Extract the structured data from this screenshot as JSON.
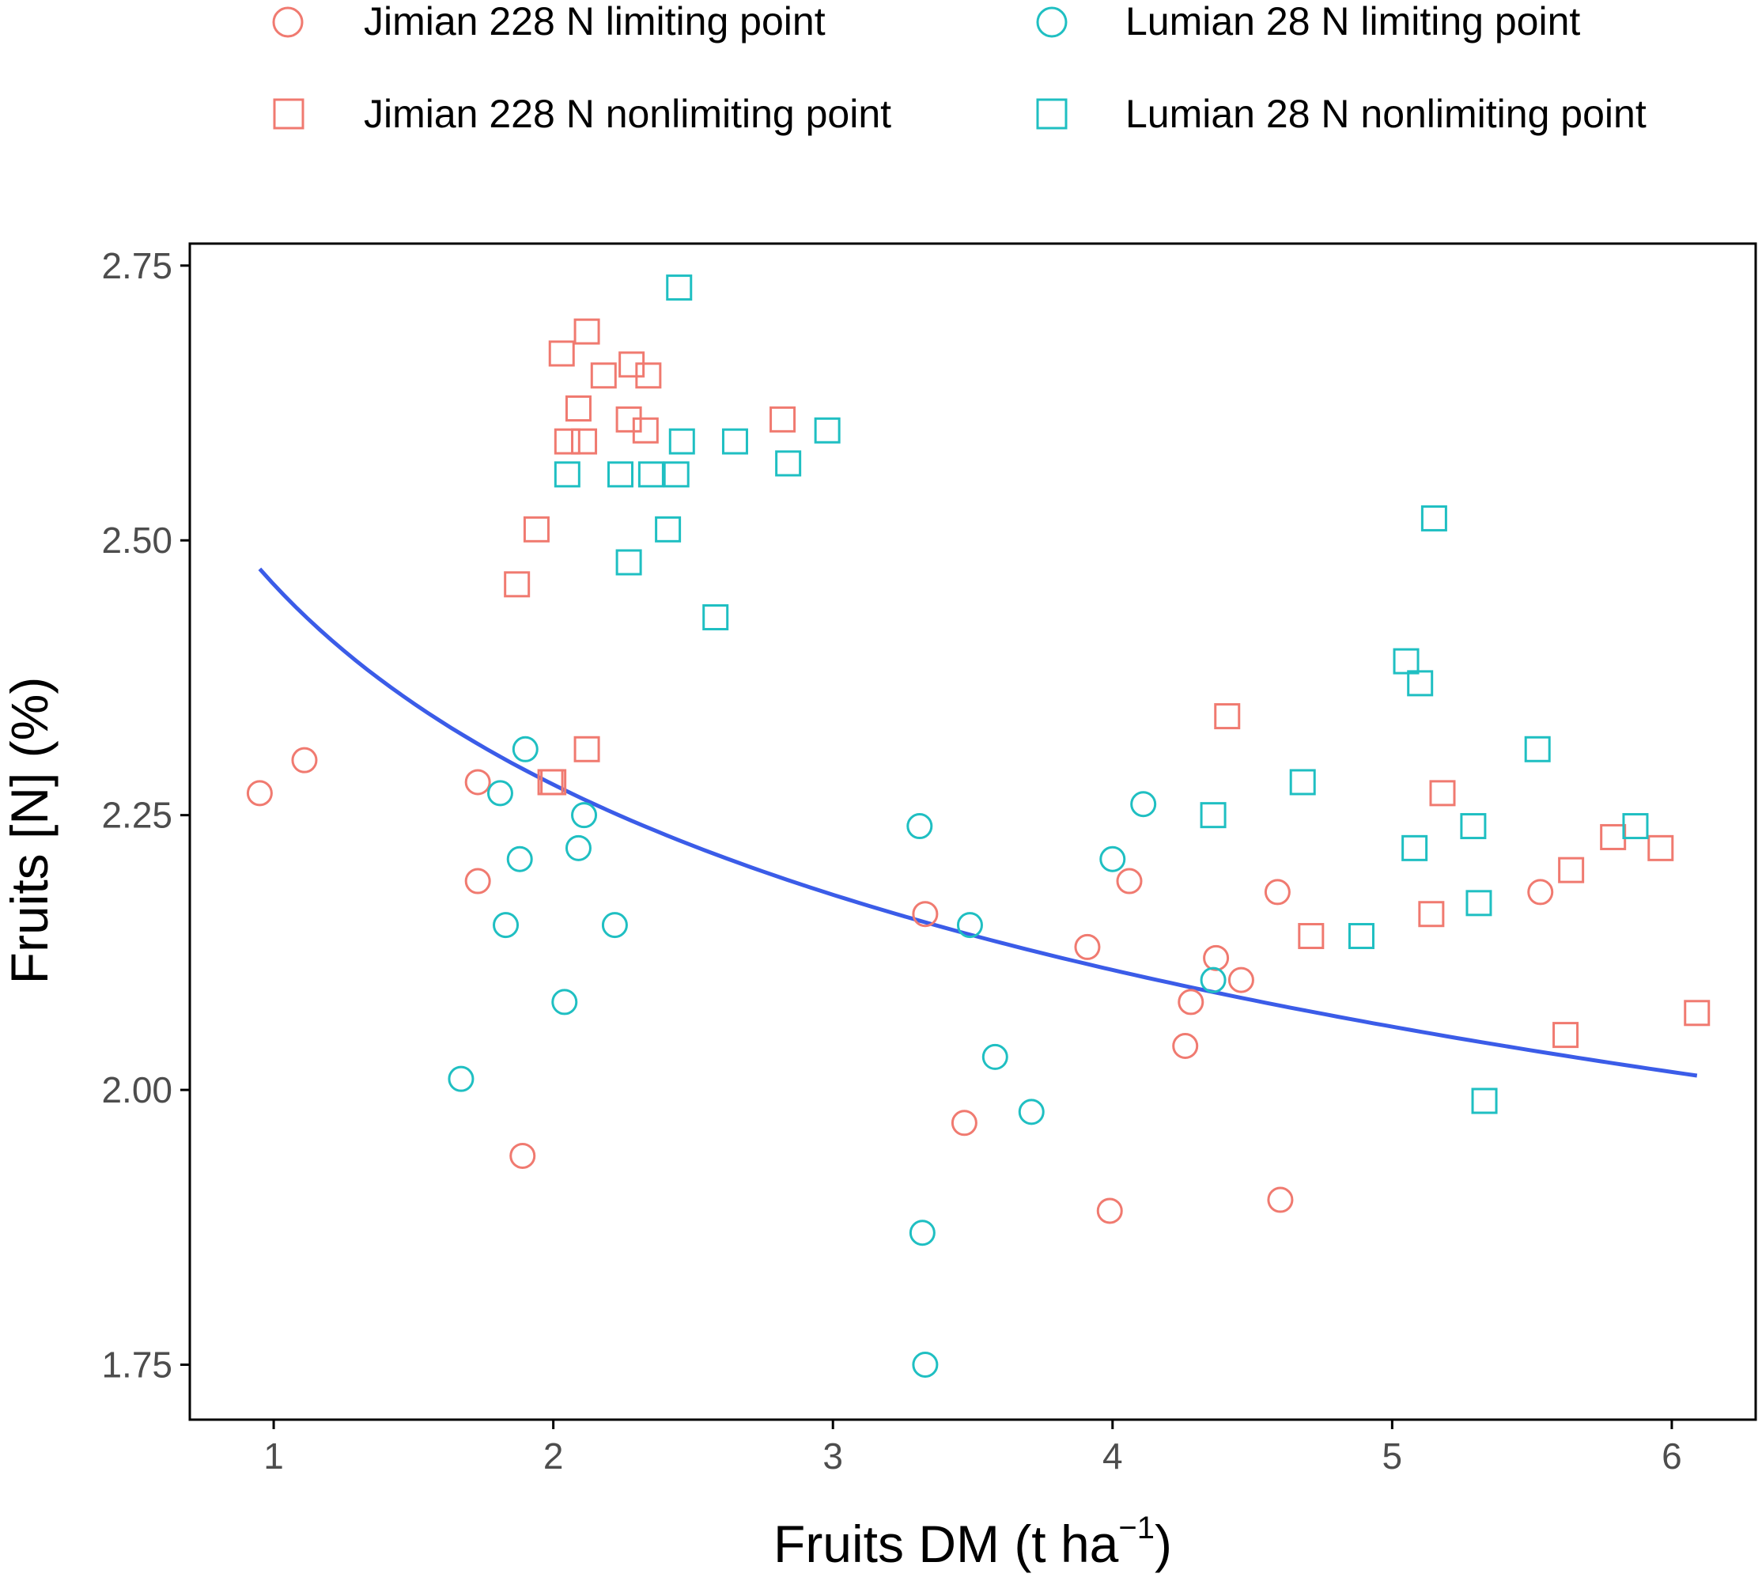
{
  "chart_data": {
    "type": "scatter",
    "title": "",
    "xlabel_main": "Fruits DM (t ha",
    "xlabel_sup": "−1",
    "xlabel_close": ")",
    "ylabel": "Fruits [N] (%)",
    "xlim": [
      0.7,
      6.3
    ],
    "ylim": [
      1.7,
      2.77
    ],
    "x_ticks": [
      1,
      2,
      3,
      4,
      5,
      6
    ],
    "x_tick_labels": [
      "1",
      "2",
      "3",
      "4",
      "5",
      "6"
    ],
    "y_ticks": [
      1.75,
      2.0,
      2.25,
      2.5,
      2.75
    ],
    "y_tick_labels": [
      "1.75",
      "2.00",
      "2.25",
      "2.50",
      "2.75"
    ],
    "grid": false,
    "legend_position": "top",
    "colors": {
      "jimian": "#F07A70",
      "lumian": "#1FBFC2",
      "curve": "#3B5CE8",
      "axis": "#000000",
      "tick_text": "#4D4D4D"
    },
    "series": [
      {
        "name": "Jimian 228 N limiting point",
        "color": "#F07A70",
        "marker": "circle",
        "points": [
          [
            0.95,
            2.27
          ],
          [
            1.11,
            2.3
          ],
          [
            1.73,
            2.28
          ],
          [
            1.73,
            2.19
          ],
          [
            1.89,
            1.94
          ],
          [
            3.33,
            2.16
          ],
          [
            3.47,
            1.97
          ],
          [
            3.91,
            2.13
          ],
          [
            3.99,
            1.89
          ],
          [
            4.06,
            2.19
          ],
          [
            4.26,
            2.04
          ],
          [
            4.28,
            2.08
          ],
          [
            4.37,
            2.12
          ],
          [
            4.46,
            2.1
          ],
          [
            4.59,
            2.18
          ],
          [
            4.6,
            1.9
          ],
          [
            5.53,
            2.18
          ]
        ]
      },
      {
        "name": "Jimian 228 N nonlimiting point",
        "color": "#F07A70",
        "marker": "square",
        "points": [
          [
            1.87,
            2.46
          ],
          [
            1.94,
            2.51
          ],
          [
            1.99,
            2.28
          ],
          [
            2.0,
            2.28
          ],
          [
            2.03,
            2.67
          ],
          [
            2.05,
            2.59
          ],
          [
            2.09,
            2.62
          ],
          [
            2.11,
            2.59
          ],
          [
            2.12,
            2.69
          ],
          [
            2.12,
            2.31
          ],
          [
            2.18,
            2.65
          ],
          [
            2.27,
            2.61
          ],
          [
            2.28,
            2.66
          ],
          [
            2.33,
            2.6
          ],
          [
            2.34,
            2.65
          ],
          [
            2.82,
            2.61
          ],
          [
            4.41,
            2.34
          ],
          [
            4.71,
            2.14
          ],
          [
            5.14,
            2.16
          ],
          [
            5.18,
            2.27
          ],
          [
            5.62,
            2.05
          ],
          [
            5.64,
            2.2
          ],
          [
            5.79,
            2.23
          ],
          [
            5.96,
            2.22
          ],
          [
            6.09,
            2.07
          ]
        ]
      },
      {
        "name": "Lumian 28 N limiting point",
        "color": "#1FBFC2",
        "marker": "circle",
        "points": [
          [
            1.67,
            2.01
          ],
          [
            1.81,
            2.27
          ],
          [
            1.83,
            2.15
          ],
          [
            1.88,
            2.21
          ],
          [
            1.9,
            2.31
          ],
          [
            2.04,
            2.08
          ],
          [
            2.09,
            2.22
          ],
          [
            2.11,
            2.25
          ],
          [
            2.22,
            2.15
          ],
          [
            3.31,
            2.24
          ],
          [
            3.32,
            1.87
          ],
          [
            3.33,
            1.75
          ],
          [
            3.49,
            2.15
          ],
          [
            3.58,
            2.03
          ],
          [
            3.71,
            1.98
          ],
          [
            4.0,
            2.21
          ],
          [
            4.11,
            2.26
          ],
          [
            4.36,
            2.1
          ]
        ]
      },
      {
        "name": "Lumian 28 N nonlimiting point",
        "color": "#1FBFC2",
        "marker": "square",
        "points": [
          [
            2.05,
            2.56
          ],
          [
            2.24,
            2.56
          ],
          [
            2.27,
            2.48
          ],
          [
            2.35,
            2.56
          ],
          [
            2.41,
            2.51
          ],
          [
            2.44,
            2.56
          ],
          [
            2.45,
            2.73
          ],
          [
            2.46,
            2.59
          ],
          [
            2.58,
            2.43
          ],
          [
            2.65,
            2.59
          ],
          [
            2.84,
            2.57
          ],
          [
            2.98,
            2.6
          ],
          [
            4.36,
            2.25
          ],
          [
            4.68,
            2.28
          ],
          [
            4.89,
            2.14
          ],
          [
            5.05,
            2.39
          ],
          [
            5.08,
            2.22
          ],
          [
            5.1,
            2.37
          ],
          [
            5.15,
            2.52
          ],
          [
            5.29,
            2.24
          ],
          [
            5.31,
            2.17
          ],
          [
            5.33,
            1.99
          ],
          [
            5.52,
            2.31
          ],
          [
            5.87,
            2.24
          ]
        ]
      }
    ],
    "fit_curve": {
      "name": "critical N dilution curve",
      "color": "#3B5CE8",
      "a": 2.46,
      "b": -0.111,
      "x_range": [
        0.95,
        6.09
      ]
    }
  }
}
